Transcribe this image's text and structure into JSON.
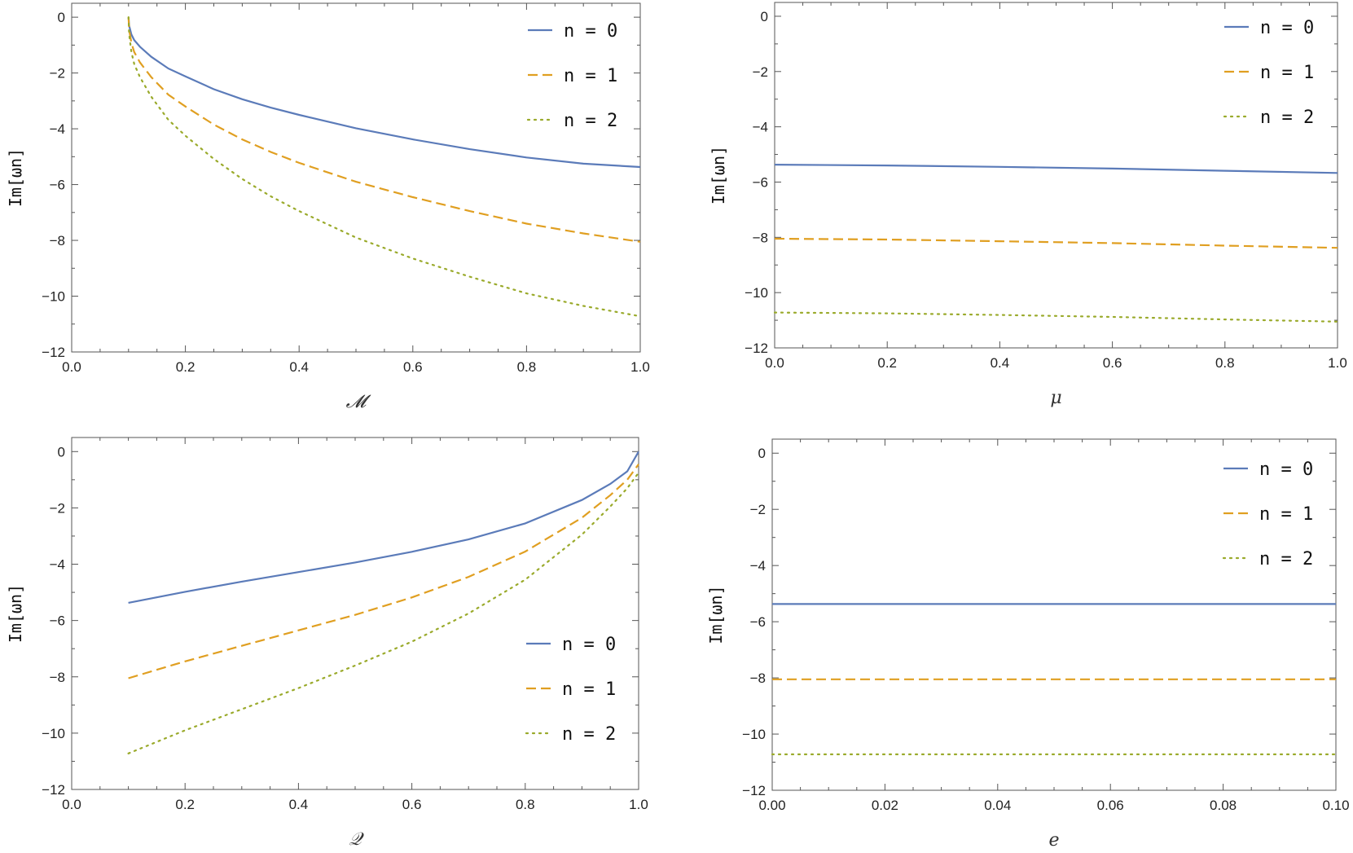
{
  "chart_data": [
    {
      "type": "line",
      "title": "",
      "xlabel": "𝓜",
      "ylabel": "Im[ωn]",
      "xlim": [
        0.0,
        1.0
      ],
      "ylim": [
        -12,
        0.5
      ],
      "xticks": [
        "0.0",
        "0.2",
        "0.4",
        "0.6",
        "0.8",
        "1.0"
      ],
      "yticks": [
        "0",
        "-2",
        "-4",
        "-6",
        "-8",
        "-10",
        "-12"
      ],
      "legend_position": "top-right",
      "series": [
        {
          "name": "n = 0",
          "style": "solid",
          "color": "#5b7bb9",
          "x": [
            0.1,
            0.101,
            0.105,
            0.11,
            0.12,
            0.14,
            0.17,
            0.2,
            0.25,
            0.3,
            0.35,
            0.4,
            0.5,
            0.6,
            0.7,
            0.8,
            0.9,
            1.0
          ],
          "y": [
            0,
            -0.3,
            -0.62,
            -0.82,
            -1.06,
            -1.42,
            -1.84,
            -2.12,
            -2.58,
            -2.94,
            -3.24,
            -3.5,
            -3.98,
            -4.38,
            -4.73,
            -5.03,
            -5.25,
            -5.37
          ]
        },
        {
          "name": "n = 1",
          "style": "dashed",
          "color": "#e09f21",
          "x": [
            0.1,
            0.101,
            0.105,
            0.11,
            0.12,
            0.14,
            0.17,
            0.2,
            0.25,
            0.3,
            0.35,
            0.4,
            0.5,
            0.6,
            0.7,
            0.8,
            0.9,
            1.0
          ],
          "y": [
            0,
            -0.45,
            -0.92,
            -1.25,
            -1.62,
            -2.15,
            -2.78,
            -3.2,
            -3.85,
            -4.38,
            -4.83,
            -5.22,
            -5.9,
            -6.45,
            -6.95,
            -7.4,
            -7.75,
            -8.05
          ]
        },
        {
          "name": "n = 2",
          "style": "dotted",
          "color": "#9aaa2b",
          "x": [
            0.1,
            0.101,
            0.105,
            0.11,
            0.12,
            0.14,
            0.17,
            0.2,
            0.25,
            0.3,
            0.35,
            0.4,
            0.5,
            0.6,
            0.7,
            0.8,
            0.9,
            1.0
          ],
          "y": [
            0,
            -0.6,
            -1.25,
            -1.68,
            -2.15,
            -2.85,
            -3.68,
            -4.25,
            -5.08,
            -5.8,
            -6.42,
            -6.95,
            -7.9,
            -8.65,
            -9.3,
            -9.9,
            -10.35,
            -10.72
          ]
        }
      ]
    },
    {
      "type": "line",
      "title": "",
      "xlabel": "μ",
      "ylabel": "Im[ωn]",
      "xlim": [
        0.0,
        1.0
      ],
      "ylim": [
        -12,
        0.5
      ],
      "xticks": [
        "0.0",
        "0.2",
        "0.4",
        "0.6",
        "0.8",
        "1.0"
      ],
      "yticks": [
        "0",
        "-2",
        "-4",
        "-6",
        "-8",
        "-10",
        "-12"
      ],
      "legend_position": "top-right",
      "series": [
        {
          "name": "n = 0",
          "style": "solid",
          "color": "#5b7bb9",
          "x": [
            0.0,
            0.2,
            0.4,
            0.6,
            0.8,
            1.0
          ],
          "y": [
            -5.37,
            -5.4,
            -5.45,
            -5.51,
            -5.59,
            -5.67
          ]
        },
        {
          "name": "n = 1",
          "style": "dashed",
          "color": "#e09f21",
          "x": [
            0.0,
            0.2,
            0.4,
            0.6,
            0.8,
            1.0
          ],
          "y": [
            -8.05,
            -8.08,
            -8.14,
            -8.21,
            -8.3,
            -8.38
          ]
        },
        {
          "name": "n = 2",
          "style": "dotted",
          "color": "#9aaa2b",
          "x": [
            0.0,
            0.2,
            0.4,
            0.6,
            0.8,
            1.0
          ],
          "y": [
            -10.72,
            -10.75,
            -10.81,
            -10.88,
            -10.97,
            -11.05
          ]
        }
      ]
    },
    {
      "type": "line",
      "title": "",
      "xlabel": "𝒬",
      "ylabel": "Im[ωn]",
      "xlim": [
        0.0,
        1.0
      ],
      "ylim": [
        -12,
        0.5
      ],
      "xticks": [
        "0.0",
        "0.2",
        "0.4",
        "0.6",
        "0.8",
        "1.0"
      ],
      "yticks": [
        "0",
        "-2",
        "-4",
        "-6",
        "-8",
        "-10",
        "-12"
      ],
      "legend_position": "bottom-right",
      "series": [
        {
          "name": "n = 0",
          "style": "solid",
          "color": "#5b7bb9",
          "x": [
            0.1,
            0.2,
            0.3,
            0.4,
            0.5,
            0.6,
            0.7,
            0.8,
            0.9,
            0.95,
            0.98,
            1.0
          ],
          "y": [
            -5.37,
            -4.98,
            -4.62,
            -4.28,
            -3.94,
            -3.56,
            -3.12,
            -2.55,
            -1.72,
            -1.15,
            -0.7,
            0
          ]
        },
        {
          "name": "n = 1",
          "style": "dashed",
          "color": "#e09f21",
          "x": [
            0.1,
            0.2,
            0.3,
            0.4,
            0.5,
            0.6,
            0.7,
            0.8,
            0.9,
            0.95,
            0.98,
            1.0
          ],
          "y": [
            -8.05,
            -7.45,
            -6.9,
            -6.35,
            -5.8,
            -5.18,
            -4.45,
            -3.55,
            -2.35,
            -1.55,
            -1.0,
            -0.45
          ]
        },
        {
          "name": "n = 2",
          "style": "dotted",
          "color": "#9aaa2b",
          "x": [
            0.1,
            0.2,
            0.3,
            0.4,
            0.5,
            0.6,
            0.7,
            0.8,
            0.9,
            0.95,
            0.98,
            1.0
          ],
          "y": [
            -10.72,
            -9.9,
            -9.15,
            -8.4,
            -7.6,
            -6.75,
            -5.75,
            -4.55,
            -2.95,
            -1.95,
            -1.3,
            -0.75
          ]
        }
      ]
    },
    {
      "type": "line",
      "title": "",
      "xlabel": "e",
      "ylabel": "Im[ωn]",
      "xlim": [
        0.0,
        0.1
      ],
      "ylim": [
        -12,
        0.5
      ],
      "xticks": [
        "0.00",
        "0.02",
        "0.04",
        "0.06",
        "0.08",
        "0.10"
      ],
      "yticks": [
        "0",
        "-2",
        "-4",
        "-6",
        "-8",
        "-10",
        "-12"
      ],
      "legend_position": "top-right",
      "series": [
        {
          "name": "n = 0",
          "style": "solid",
          "color": "#5b7bb9",
          "x": [
            0.0,
            0.1
          ],
          "y": [
            -5.37,
            -5.37
          ]
        },
        {
          "name": "n = 1",
          "style": "dashed",
          "color": "#e09f21",
          "x": [
            0.0,
            0.1
          ],
          "y": [
            -8.05,
            -8.05
          ]
        },
        {
          "name": "n = 2",
          "style": "dotted",
          "color": "#9aaa2b",
          "x": [
            0.0,
            0.1
          ],
          "y": [
            -10.72,
            -10.72
          ]
        }
      ]
    }
  ]
}
